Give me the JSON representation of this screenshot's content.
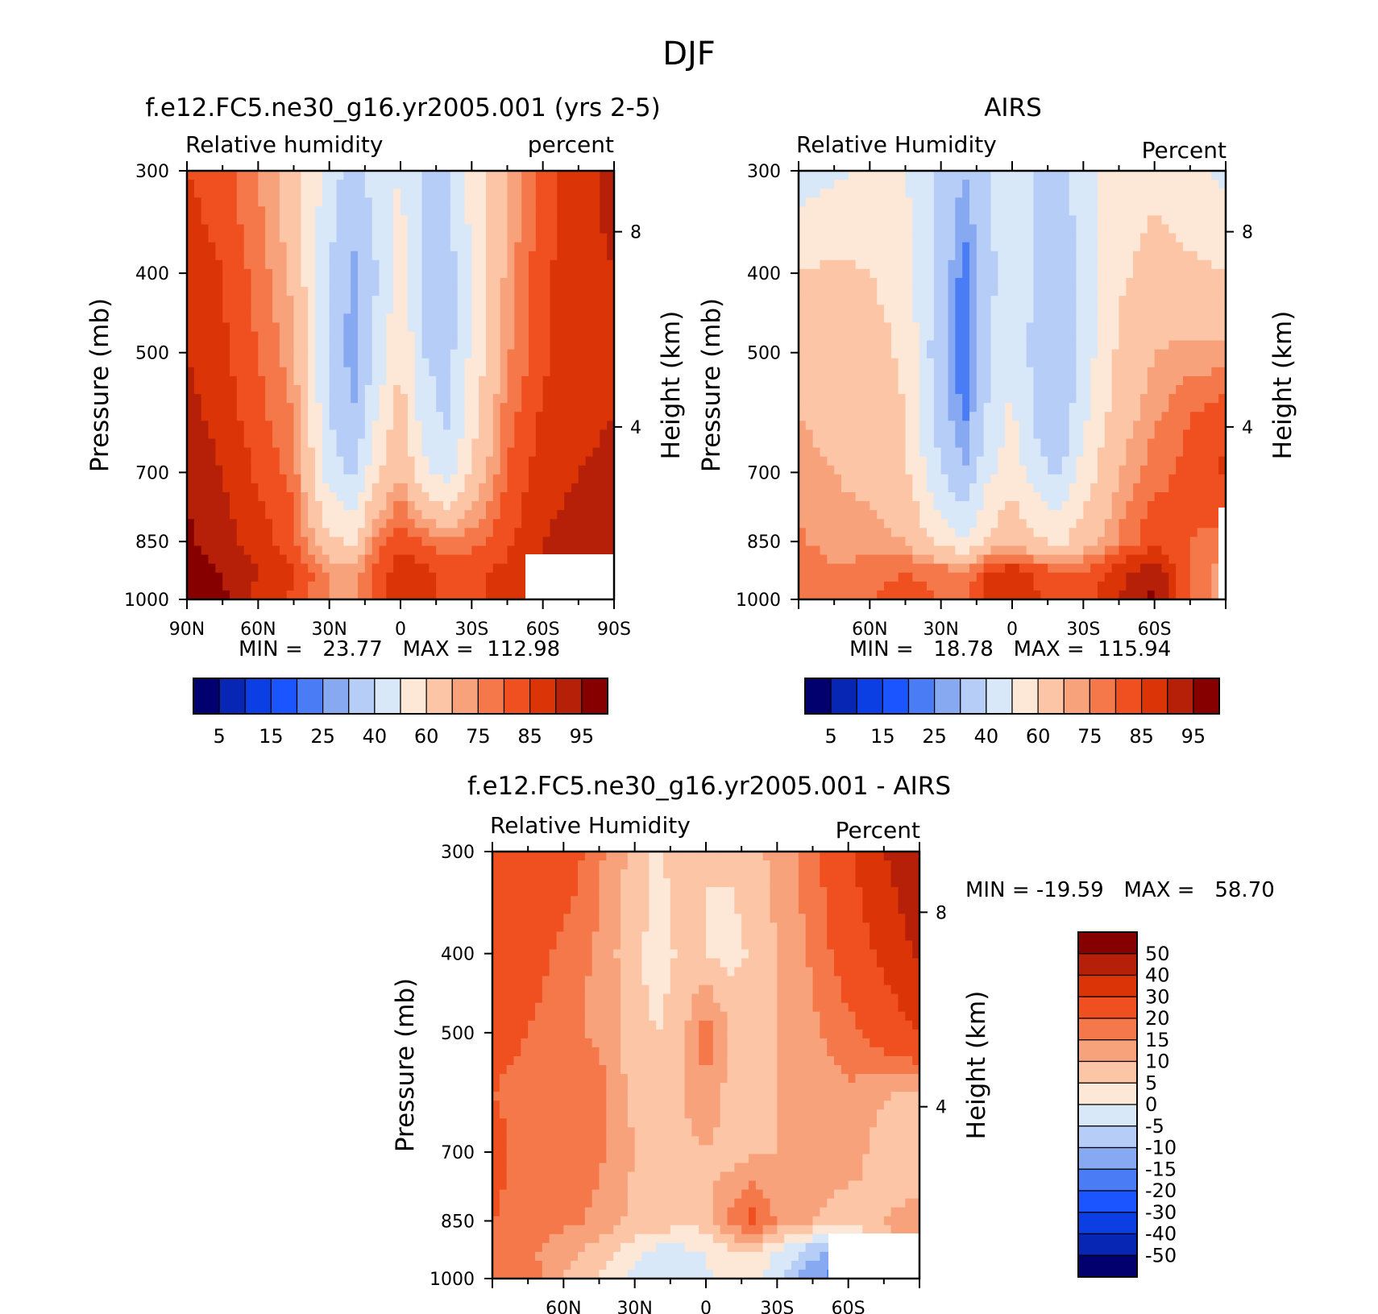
{
  "figure": {
    "title": "DJF"
  },
  "colors": {
    "rh_palette": [
      "#02006e",
      "#0726b3",
      "#0b3ee3",
      "#1a55ff",
      "#4a7df5",
      "#86a9f2",
      "#b6cdf7",
      "#d8e8f8",
      "#fde7d6",
      "#fbc5a6",
      "#f8a27c",
      "#f5784a",
      "#f0501f",
      "#db3407",
      "#b72008",
      "#860000"
    ],
    "diff_palette": [
      "#02006e",
      "#0726b3",
      "#0b3ee3",
      "#1a55ff",
      "#4a7df5",
      "#86a9f2",
      "#b6cdf7",
      "#d8e8f8",
      "#fde7d6",
      "#fbc5a6",
      "#f8a27c",
      "#f5784a",
      "#f0501f",
      "#db3407",
      "#b72008",
      "#860000"
    ],
    "mask": "#ffffff",
    "frame": "#000000"
  },
  "panels": [
    {
      "id": "model",
      "title": "f.e12.FC5.ne30_g16.yr2005.001 (yrs 2-5)",
      "left_label": "Relative humidity",
      "right_label": "percent",
      "ylabel": "Pressure (mb)",
      "y2label": "Height (km)",
      "yticks": [
        "300",
        "400",
        "500",
        "700",
        "850",
        "1000"
      ],
      "y2ticks": [
        "8",
        "4"
      ],
      "xticks": [
        "90N",
        "60N",
        "30N",
        "0",
        "30S",
        "60S",
        "90S"
      ],
      "minmax": "MIN =   23.77   MAX =  112.98",
      "colorbar_labels": [
        "5",
        "15",
        "25",
        "40",
        "60",
        "75",
        "85",
        "95"
      ]
    },
    {
      "id": "obs",
      "title": "AIRS",
      "left_label": "Relative Humidity",
      "right_label": "Percent",
      "ylabel": "Pressure (mb)",
      "y2label": "Height (km)",
      "yticks": [
        "300",
        "400",
        "500",
        "700",
        "850",
        "1000"
      ],
      "y2ticks": [
        "8",
        "4"
      ],
      "xticks": [
        "60N",
        "30N",
        "0",
        "30S",
        "60S"
      ],
      "minmax": "MIN =   18.78   MAX =  115.94",
      "colorbar_labels": [
        "5",
        "15",
        "25",
        "40",
        "60",
        "75",
        "85",
        "95"
      ]
    },
    {
      "id": "diff",
      "title": "f.e12.FC5.ne30_g16.yr2005.001 - AIRS",
      "left_label": "Relative Humidity",
      "right_label": "Percent",
      "ylabel": "Pressure (mb)",
      "y2label": "Height (km)",
      "yticks": [
        "300",
        "400",
        "500",
        "700",
        "850",
        "1000"
      ],
      "y2ticks": [
        "8",
        "4"
      ],
      "xticks": [
        "60N",
        "30N",
        "0",
        "30S",
        "60S"
      ],
      "minmax": "MIN = -19.59   MAX =   58.70",
      "colorbar_labels": [
        "50",
        "40",
        "30",
        "20",
        "15",
        "10",
        "5",
        "0",
        "-5",
        "-10",
        "-15",
        "-20",
        "-30",
        "-40",
        "-50"
      ]
    }
  ],
  "chart_data": [
    {
      "type": "heatmap",
      "title": "f.e12.FC5.ne30_g16.yr2005.001 (yrs 2-5)",
      "xlabel": "",
      "ylabel": "Pressure (mb)",
      "xlim": [
        90,
        -90
      ],
      "ylim": [
        1000,
        300
      ],
      "y_scale": "log",
      "z_label": "Relative humidity (percent)",
      "z_min": 23.77,
      "z_max": 112.98,
      "levels": [
        5,
        10,
        15,
        20,
        25,
        30,
        40,
        50,
        60,
        70,
        75,
        80,
        85,
        90,
        95
      ],
      "lat": [
        90,
        75,
        60,
        45,
        30,
        20,
        10,
        0,
        -10,
        -20,
        -30,
        -45,
        -60,
        -75,
        -90
      ],
      "lev": [
        300,
        400,
        500,
        600,
        700,
        850,
        925,
        1000
      ],
      "values": [
        [
          85,
          82,
          75,
          65,
          45,
          35,
          45,
          50,
          38,
          40,
          55,
          70,
          82,
          88,
          92
        ],
        [
          88,
          85,
          78,
          68,
          40,
          28,
          40,
          55,
          38,
          35,
          50,
          72,
          84,
          88,
          90
        ],
        [
          90,
          86,
          80,
          72,
          38,
          26,
          42,
          60,
          40,
          36,
          52,
          74,
          84,
          88,
          90
        ],
        [
          92,
          88,
          82,
          75,
          40,
          30,
          50,
          65,
          45,
          38,
          56,
          78,
          86,
          88,
          90
        ],
        [
          94,
          90,
          84,
          78,
          45,
          38,
          58,
          70,
          52,
          45,
          62,
          80,
          88,
          90,
          92
        ],
        [
          96,
          92,
          88,
          82,
          62,
          58,
          78,
          84,
          80,
          75,
          78,
          84,
          90,
          92,
          94
        ],
        [
          97,
          95,
          90,
          86,
          75,
          72,
          82,
          88,
          86,
          84,
          84,
          86,
          92,
          94,
          96
        ],
        [
          98,
          96,
          88,
          84,
          75,
          72,
          82,
          88,
          86,
          84,
          84,
          86,
          92,
          94,
          96
        ]
      ]
    },
    {
      "type": "heatmap",
      "title": "AIRS",
      "xlabel": "",
      "ylabel": "Pressure (mb)",
      "xlim": [
        90,
        -90
      ],
      "ylim": [
        1000,
        300
      ],
      "y_scale": "log",
      "z_label": "Relative Humidity (Percent)",
      "z_min": 18.78,
      "z_max": 115.94,
      "levels": [
        5,
        10,
        15,
        20,
        25,
        30,
        40,
        50,
        60,
        70,
        75,
        80,
        85,
        90,
        95
      ],
      "lat": [
        90,
        75,
        60,
        45,
        30,
        20,
        10,
        0,
        -10,
        -20,
        -30,
        -45,
        -60,
        -75,
        -90
      ],
      "lev": [
        300,
        400,
        500,
        600,
        700,
        850,
        925,
        1000
      ],
      "values": [
        [
          45,
          48,
          52,
          50,
          38,
          30,
          40,
          48,
          40,
          38,
          45,
          55,
          58,
          52,
          48
        ],
        [
          60,
          62,
          60,
          56,
          35,
          22,
          36,
          50,
          38,
          32,
          42,
          58,
          64,
          62,
          60
        ],
        [
          68,
          66,
          64,
          58,
          32,
          20,
          38,
          50,
          36,
          30,
          44,
          62,
          70,
          72,
          72
        ],
        [
          70,
          68,
          66,
          60,
          34,
          24,
          42,
          52,
          38,
          32,
          48,
          66,
          74,
          80,
          84
        ],
        [
          72,
          70,
          68,
          62,
          40,
          30,
          48,
          56,
          44,
          38,
          54,
          70,
          78,
          82,
          86
        ],
        [
          76,
          72,
          72,
          70,
          56,
          50,
          62,
          68,
          62,
          58,
          66,
          76,
          84,
          80,
          78
        ],
        [
          80,
          76,
          78,
          80,
          78,
          76,
          86,
          88,
          84,
          80,
          80,
          88,
          94,
          80,
          70
        ],
        [
          78,
          76,
          80,
          82,
          80,
          78,
          88,
          90,
          86,
          82,
          82,
          90,
          96,
          80,
          70
        ]
      ]
    },
    {
      "type": "heatmap",
      "title": "f.e12.FC5.ne30_g16.yr2005.001 - AIRS",
      "xlabel": "",
      "ylabel": "Pressure (mb)",
      "xlim": [
        90,
        -90
      ],
      "ylim": [
        1000,
        300
      ],
      "y_scale": "log",
      "z_label": "Relative Humidity (Percent)",
      "z_min": -19.59,
      "z_max": 58.7,
      "levels": [
        -50,
        -40,
        -30,
        -20,
        -15,
        -10,
        -5,
        0,
        5,
        10,
        15,
        20,
        30,
        40,
        50
      ],
      "lat": [
        90,
        75,
        60,
        45,
        30,
        20,
        10,
        0,
        -10,
        -20,
        -30,
        -45,
        -60,
        -75,
        -90
      ],
      "lev": [
        300,
        400,
        500,
        600,
        700,
        850,
        925,
        1000
      ],
      "values": [
        [
          30,
          30,
          25,
          16,
          8,
          4,
          8,
          5,
          6,
          8,
          12,
          18,
          28,
          40,
          50
        ],
        [
          26,
          24,
          18,
          14,
          6,
          3,
          6,
          5,
          3,
          6,
          10,
          16,
          24,
          32,
          42
        ],
        [
          22,
          20,
          16,
          14,
          6,
          5,
          8,
          18,
          10,
          8,
          10,
          14,
          18,
          24,
          30
        ],
        [
          20,
          18,
          16,
          18,
          8,
          6,
          10,
          14,
          8,
          8,
          10,
          12,
          14,
          10,
          8
        ],
        [
          22,
          18,
          18,
          16,
          10,
          8,
          8,
          10,
          8,
          9,
          10,
          12,
          12,
          8,
          6
        ],
        [
          20,
          18,
          16,
          14,
          8,
          10,
          6,
          8,
          16,
          22,
          14,
          10,
          8,
          10,
          12
        ],
        [
          18,
          16,
          12,
          8,
          2,
          -2,
          -1,
          0,
          4,
          5,
          0,
          -8,
          -12,
          8,
          10
        ],
        [
          20,
          18,
          10,
          4,
          -2,
          -4,
          -3,
          -1,
          2,
          2,
          -4,
          -14,
          -18,
          8,
          10
        ]
      ]
    }
  ]
}
